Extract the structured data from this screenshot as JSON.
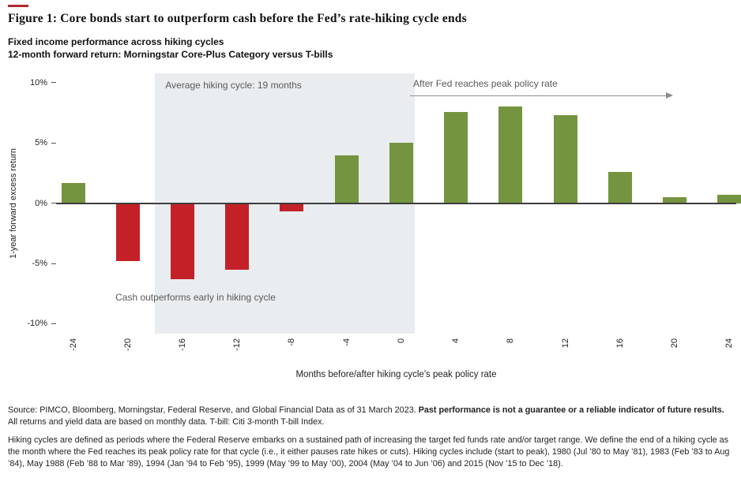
{
  "header": {
    "title": "Figure 1: Core bonds start to outperform cash before the Fed’s rate-hiking cycle ends",
    "subtitle_line1": "Fixed income performance across hiking cycles",
    "subtitle_line2": "12-month forward return: Morningstar Core-Plus Category versus T-bills"
  },
  "chart_data": {
    "type": "bar",
    "title": "",
    "categories": [
      -24,
      -20,
      -16,
      -12,
      -8,
      -4,
      0,
      4,
      8,
      12,
      16,
      20,
      24
    ],
    "values": [
      1.7,
      -4.8,
      -6.3,
      -5.5,
      -0.7,
      4.0,
      5.0,
      7.6,
      8.0,
      7.3,
      2.6,
      0.5,
      0.7
    ],
    "xlabel": "Months before/after hiking cycle's peak policy rate",
    "ylabel": "1-year forward excess return",
    "ylim": [
      -10.8,
      10.8
    ],
    "y_ticks": [
      {
        "value": 10,
        "label": "10%"
      },
      {
        "value": 5,
        "label": "5%"
      },
      {
        "value": 0,
        "label": "0%"
      },
      {
        "value": -5,
        "label": "-5%"
      },
      {
        "value": -10,
        "label": "-10%"
      }
    ],
    "grid": false,
    "legend": "none",
    "colors": {
      "positive": "#75943F",
      "negative": "#C32127",
      "band": "#E9EDF0",
      "axis": "#3D3D3D"
    },
    "annotations": {
      "shaded_region": {
        "x_from": -18,
        "x_to": 1,
        "label": "Average hiking cycle: 19 months"
      },
      "peak_arrow": {
        "label": "After Fed reaches peak policy rate"
      },
      "cash_note": {
        "label": "Cash outperforms early in hiking cycle"
      }
    }
  },
  "source": {
    "line1_normal": "Source: PIMCO, Bloomberg, Morningstar, Federal Reserve, and Global Financial Data as of 31 March 2023. ",
    "line1_bold": "Past performance is not a guarantee or a reliable indicator of future results.",
    "line2": "All returns and yield data are based on monthly data. T-bill: Citi 3-month T-bill Index."
  },
  "footnote": "Hiking cycles are defined as periods where the Federal Reserve embarks on a sustained path of increasing the target fed funds rate and/or target range. We define the end of a hiking cycle as the month where the Fed reaches its peak policy rate for that cycle (i.e., it either pauses rate hikes or cuts). Hiking cycles include (start to peak), 1980 (Jul ’80 to May ’81), 1983 (Feb ’83 to Aug ’84), May 1988 (Feb ’88 to Mar ’89), 1994 (Jan ’94 to Feb ’95), 1999 (May ’99 to May ’00), 2004 (May ’04 to Jun ’06) and 2015 (Nov ’15 to Dec ’18)."
}
